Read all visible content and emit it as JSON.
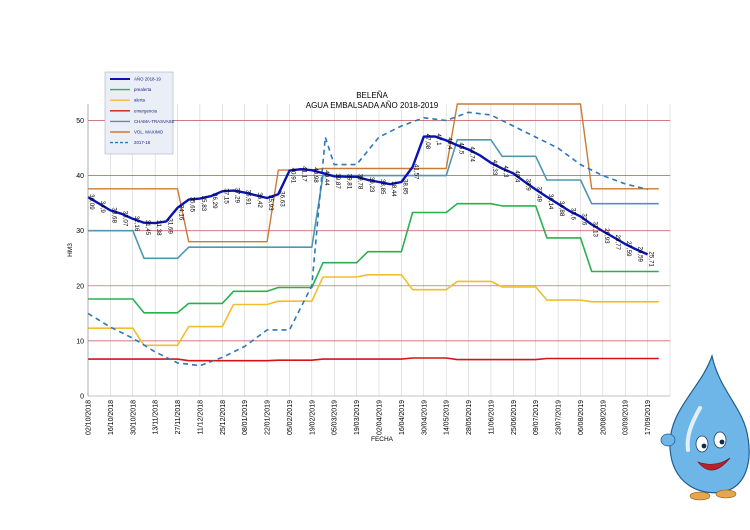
{
  "chart_data": {
    "type": "line",
    "title": "BELEÑA",
    "subtitle": "AGUA EMBALSADA AÑO 2018-2019",
    "xlabel": "FECHA",
    "ylabel": "HM3",
    "ylim": [
      0,
      53
    ],
    "yticks": [
      0,
      10,
      20,
      30,
      40,
      50
    ],
    "grid": true,
    "legend_position": "top-left",
    "colors": {
      "main": "#0a14b4",
      "prealerta": "#2ab050",
      "alerta": "#f2bd2e",
      "emergencia": "#d41418",
      "chg": "#4f97b0",
      "max": "#cc7b34",
      "prev": "#2e78b8",
      "hgrid": "#c05050"
    },
    "x_labels": [
      "02/10/2018",
      "16/10/2018",
      "30/10/2018",
      "13/11/2018",
      "27/11/2018",
      "11/12/2018",
      "25/12/2018",
      "08/01/2019",
      "22/01/2019",
      "05/02/2019",
      "19/02/2019",
      "05/03/2019",
      "19/03/2019",
      "02/04/2019",
      "16/04/2019",
      "30/04/2019",
      "14/05/2019",
      "28/05/2019",
      "11/06/2019",
      "25/06/2019",
      "09/07/2019",
      "23/07/2019",
      "06/08/2019",
      "20/08/2019",
      "03/09/2019",
      "17/09/2019"
    ],
    "series": [
      {
        "key": "main",
        "name": "AÑO 2018-19",
        "points": [
          [
            0,
            36.09
          ],
          [
            0.5,
            34.9
          ],
          [
            1,
            33.68
          ],
          [
            1.5,
            33.07
          ],
          [
            2,
            32.16
          ],
          [
            2.5,
            31.45
          ],
          [
            3,
            31.38
          ],
          [
            3.5,
            31.69
          ],
          [
            4,
            34.16
          ],
          [
            4.5,
            35.65
          ],
          [
            5,
            35.83
          ],
          [
            5.5,
            36.29
          ],
          [
            6,
            37.15
          ],
          [
            6.5,
            37.29
          ],
          [
            7,
            36.91
          ],
          [
            7.5,
            36.42
          ],
          [
            8,
            35.93
          ],
          [
            8.5,
            36.63
          ],
          [
            9,
            40.91
          ],
          [
            9.5,
            41.17
          ],
          [
            10,
            40.98
          ],
          [
            10.5,
            40.44
          ],
          [
            11,
            39.87
          ],
          [
            11.5,
            39.81
          ],
          [
            12,
            39.78
          ],
          [
            12.5,
            39.23
          ],
          [
            13,
            38.85
          ],
          [
            13.5,
            38.44
          ],
          [
            14,
            38.85
          ],
          [
            14.5,
            41.57
          ],
          [
            15,
            47.08
          ],
          [
            15.5,
            47.1
          ],
          [
            16,
            46.4
          ],
          [
            16.5,
            45.5
          ],
          [
            17,
            44.74
          ],
          [
            17.5,
            43.7
          ],
          [
            18,
            42.33
          ],
          [
            18.5,
            41.3
          ],
          [
            19,
            40.4
          ],
          [
            19.5,
            38.9
          ],
          [
            20,
            37.49
          ],
          [
            20.5,
            36.14
          ],
          [
            21,
            34.88
          ],
          [
            21.5,
            33.6
          ],
          [
            22,
            32.6
          ],
          [
            22.5,
            31.13
          ],
          [
            23,
            29.93
          ],
          [
            23.5,
            28.77
          ],
          [
            24,
            27.59
          ],
          [
            24.5,
            26.59
          ],
          [
            25,
            25.71
          ]
        ]
      },
      {
        "key": "prealerta",
        "name": "prealerta",
        "points": [
          [
            0,
            17.6
          ],
          [
            2,
            17.6
          ],
          [
            2.5,
            15.1
          ],
          [
            4,
            15.1
          ],
          [
            4.5,
            16.8
          ],
          [
            6,
            16.8
          ],
          [
            6.5,
            19
          ],
          [
            8,
            19
          ],
          [
            8.5,
            19.7
          ],
          [
            10,
            19.7
          ],
          [
            10.5,
            24.2
          ],
          [
            12,
            24.2
          ],
          [
            12.5,
            26.2
          ],
          [
            14,
            26.2
          ],
          [
            14.5,
            33.3
          ],
          [
            16,
            33.3
          ],
          [
            16.5,
            34.9
          ],
          [
            18,
            34.9
          ],
          [
            18.5,
            34.5
          ],
          [
            20,
            34.5
          ],
          [
            20.5,
            28.7
          ],
          [
            22,
            28.7
          ],
          [
            22.5,
            22.6
          ],
          [
            25.5,
            22.6
          ]
        ]
      },
      {
        "key": "alerta",
        "name": "alerta",
        "points": [
          [
            0,
            12.3
          ],
          [
            2,
            12.3
          ],
          [
            2.5,
            9.2
          ],
          [
            4,
            9.2
          ],
          [
            4.5,
            12.6
          ],
          [
            6,
            12.6
          ],
          [
            6.5,
            16.6
          ],
          [
            8,
            16.6
          ],
          [
            8.5,
            17.2
          ],
          [
            10,
            17.2
          ],
          [
            10.5,
            21.6
          ],
          [
            12,
            21.6
          ],
          [
            12.5,
            22
          ],
          [
            14,
            22
          ],
          [
            14.5,
            19.3
          ],
          [
            16,
            19.3
          ],
          [
            16.5,
            20.8
          ],
          [
            18,
            20.8
          ],
          [
            18.5,
            19.8
          ],
          [
            20,
            19.8
          ],
          [
            20.5,
            17.4
          ],
          [
            22,
            17.4
          ],
          [
            22.5,
            17.1
          ],
          [
            25.5,
            17.1
          ]
        ]
      },
      {
        "key": "emergencia",
        "name": "emergencia",
        "points": [
          [
            0,
            6.7
          ],
          [
            4,
            6.7
          ],
          [
            4.5,
            6.4
          ],
          [
            8,
            6.4
          ],
          [
            8.5,
            6.5
          ],
          [
            10,
            6.5
          ],
          [
            10.5,
            6.7
          ],
          [
            14,
            6.7
          ],
          [
            14.5,
            6.9
          ],
          [
            16,
            6.9
          ],
          [
            16.5,
            6.6
          ],
          [
            20,
            6.6
          ],
          [
            20.5,
            6.8
          ],
          [
            25.5,
            6.8
          ]
        ]
      },
      {
        "key": "chg",
        "name": "CHAMA-TRASVASE",
        "points": [
          [
            0,
            30
          ],
          [
            2,
            30
          ],
          [
            2.5,
            25
          ],
          [
            4,
            25
          ],
          [
            4.5,
            27
          ],
          [
            8,
            27
          ],
          [
            8.5,
            27
          ],
          [
            10,
            27
          ],
          [
            10.5,
            40
          ],
          [
            16,
            40
          ],
          [
            16.5,
            46.5
          ],
          [
            18,
            46.5
          ],
          [
            18.5,
            43.5
          ],
          [
            20,
            43.5
          ],
          [
            20.5,
            39.2
          ],
          [
            22,
            39.2
          ],
          [
            22.5,
            34.9
          ],
          [
            25.5,
            34.9
          ]
        ]
      },
      {
        "key": "max",
        "name": "VOL. MAXIMO",
        "points": [
          [
            0,
            37.6
          ],
          [
            4,
            37.6
          ],
          [
            4.5,
            28
          ],
          [
            8,
            28
          ],
          [
            8.5,
            41
          ],
          [
            10,
            41
          ],
          [
            10.5,
            41.3
          ],
          [
            16,
            41.3
          ],
          [
            16.5,
            53
          ],
          [
            22,
            53
          ],
          [
            22.5,
            37.6
          ],
          [
            25.5,
            37.6
          ]
        ]
      },
      {
        "key": "prev",
        "name": "2017-18",
        "points": [
          [
            0,
            15
          ],
          [
            1,
            12.5
          ],
          [
            2,
            10.5
          ],
          [
            3,
            8
          ],
          [
            4,
            6
          ],
          [
            5,
            5.5
          ],
          [
            6,
            7
          ],
          [
            7,
            9
          ],
          [
            8,
            12
          ],
          [
            9,
            12
          ],
          [
            10,
            20
          ],
          [
            10.6,
            47
          ],
          [
            11,
            42
          ],
          [
            12,
            42
          ],
          [
            13,
            47
          ],
          [
            14,
            49
          ],
          [
            15,
            50.5
          ],
          [
            16,
            50
          ],
          [
            17,
            51.5
          ],
          [
            18,
            51
          ],
          [
            19,
            49
          ],
          [
            20,
            47
          ],
          [
            21,
            45
          ],
          [
            22,
            42
          ],
          [
            23,
            40
          ],
          [
            24,
            38.5
          ],
          [
            25,
            37.5
          ]
        ]
      }
    ],
    "data_labels": [
      {
        "i": 0,
        "text": "36,09"
      },
      {
        "i": 1,
        "text": "34,9"
      },
      {
        "i": 2,
        "text": "33,68"
      },
      {
        "i": 3,
        "text": "33,07"
      },
      {
        "i": 4,
        "text": "32,16"
      },
      {
        "i": 5,
        "text": "31,45"
      },
      {
        "i": 6,
        "text": "31,38"
      },
      {
        "i": 7,
        "text": "31,69"
      },
      {
        "i": 8,
        "text": "34,16"
      },
      {
        "i": 9,
        "text": "35,65"
      },
      {
        "i": 10,
        "text": "35,83"
      },
      {
        "i": 11,
        "text": "36,29"
      },
      {
        "i": 12,
        "text": "37,15"
      },
      {
        "i": 13,
        "text": "37,29"
      },
      {
        "i": 14,
        "text": "36,91"
      },
      {
        "i": 15,
        "text": "36,42"
      },
      {
        "i": 16,
        "text": "35,93"
      },
      {
        "i": 17,
        "text": "36,63"
      },
      {
        "i": 18,
        "text": "40,91"
      },
      {
        "i": 19,
        "text": "41,17"
      },
      {
        "i": 20,
        "text": "40,98"
      },
      {
        "i": 21,
        "text": "40,44"
      },
      {
        "i": 22,
        "text": "39,87"
      },
      {
        "i": 23,
        "text": "39,81"
      },
      {
        "i": 24,
        "text": "39,78"
      },
      {
        "i": 25,
        "text": "39,23"
      },
      {
        "i": 26,
        "text": "38,85"
      },
      {
        "i": 27,
        "text": "38,44"
      },
      {
        "i": 28,
        "text": "38,85"
      },
      {
        "i": 29,
        "text": "41,57"
      },
      {
        "i": 30,
        "text": "47,08"
      },
      {
        "i": 31,
        "text": "47,1"
      },
      {
        "i": 32,
        "text": "46,4"
      },
      {
        "i": 33,
        "text": "45,5"
      },
      {
        "i": 34,
        "text": "44,74"
      },
      {
        "i": 36,
        "text": "42,33"
      },
      {
        "i": 37,
        "text": "41,3"
      },
      {
        "i": 38,
        "text": "40,4"
      },
      {
        "i": 39,
        "text": "38,9"
      },
      {
        "i": 40,
        "text": "37,49"
      },
      {
        "i": 41,
        "text": "36,14"
      },
      {
        "i": 42,
        "text": "34,88"
      },
      {
        "i": 43,
        "text": "33,6"
      },
      {
        "i": 44,
        "text": "32,6"
      },
      {
        "i": 45,
        "text": "31,13"
      },
      {
        "i": 46,
        "text": "29,93"
      },
      {
        "i": 47,
        "text": "28,77"
      },
      {
        "i": 48,
        "text": "27,59"
      },
      {
        "i": 49,
        "text": "26,59"
      },
      {
        "i": 50,
        "text": "25,71"
      }
    ]
  }
}
